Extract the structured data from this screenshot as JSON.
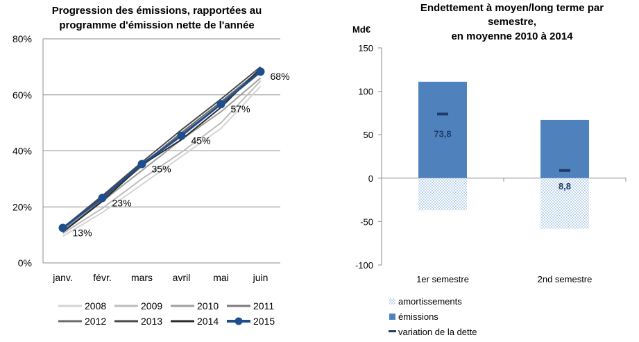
{
  "chart_data": [
    {
      "type": "line",
      "title_lines": [
        "Progression des émissions, rapportées au",
        "programme d'émission nette de l'année"
      ],
      "categories": [
        "janv.",
        "févr.",
        "mars",
        "avril",
        "mai",
        "juin"
      ],
      "y_ticks": [
        "0%",
        "20%",
        "40%",
        "60%",
        "80%"
      ],
      "ylim": [
        0,
        80
      ],
      "grid": true,
      "legend_position": "bottom",
      "series": [
        {
          "name": "2008",
          "values": [
            9.5,
            18,
            28,
            38,
            48,
            63
          ],
          "color": "#d4d4d4",
          "width": 2
        },
        {
          "name": "2009",
          "values": [
            10.5,
            19.5,
            30,
            39.5,
            50,
            65
          ],
          "color": "#bdbdbd",
          "width": 2
        },
        {
          "name": "2010",
          "values": [
            11.5,
            22,
            33,
            44,
            54,
            66
          ],
          "color": "#9e9e9e",
          "width": 2
        },
        {
          "name": "2011",
          "values": [
            12,
            23,
            34.5,
            46,
            56.5,
            68
          ],
          "color": "#7a7a7a",
          "width": 2
        },
        {
          "name": "2012",
          "values": [
            11,
            22.5,
            35,
            46.5,
            57.5,
            69
          ],
          "color": "#6b6b6b",
          "width": 2
        },
        {
          "name": "2013",
          "values": [
            12.5,
            24,
            36,
            47.5,
            58.5,
            70
          ],
          "color": "#4a4a4a",
          "width": 2
        },
        {
          "name": "2014",
          "values": [
            11,
            22,
            35,
            44,
            55.5,
            69.5
          ],
          "color": "#2b2b2b",
          "width": 2
        },
        {
          "name": "2015",
          "values": [
            12.5,
            23.2,
            35.3,
            45.4,
            56.7,
            68.3
          ],
          "color": "#1f4e8c",
          "width": 3,
          "markers": true,
          "point_labels": [
            "13%",
            "23%",
            "35%",
            "45%",
            "57%",
            "68%"
          ]
        }
      ]
    },
    {
      "type": "bar",
      "title_lines": [
        "Endettement à moyen/long terme par",
        "semestre,",
        "en moyenne 2010 à 2014"
      ],
      "y_unit": "Md€",
      "categories": [
        "1er semestre",
        "2nd semestre"
      ],
      "y_ticks": [
        "-100",
        "-50",
        "0",
        "50",
        "100",
        "150"
      ],
      "ylim": [
        -100,
        150
      ],
      "series": [
        {
          "name": "amortissements",
          "values": [
            -37,
            -58
          ],
          "color": "#9dc3e6"
        },
        {
          "name": "émissions",
          "values": [
            111,
            67
          ],
          "color": "#4f81bd"
        },
        {
          "name": "variation de la dette",
          "values": [
            73.8,
            8.8
          ],
          "color": "#1f3a6b"
        }
      ],
      "value_labels": [
        "73,8",
        "8,8"
      ]
    }
  ]
}
